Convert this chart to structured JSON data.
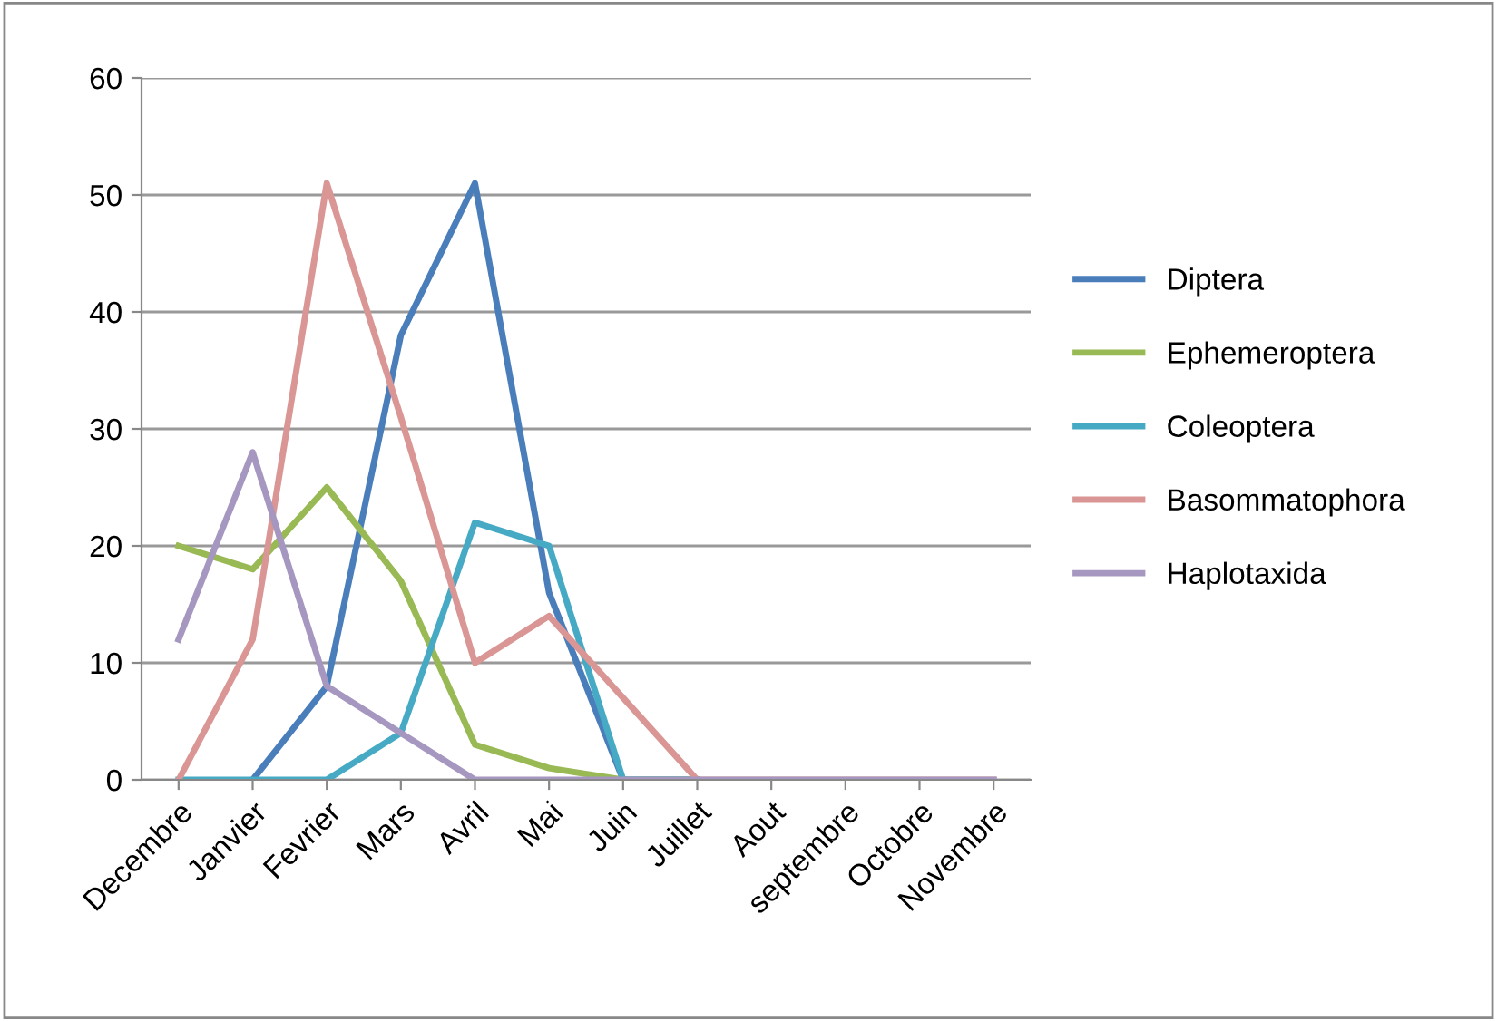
{
  "chart_data": {
    "type": "line",
    "categories": [
      "Decembre",
      "Janvier",
      "Fevrier",
      "Mars",
      "Avril",
      "Mai",
      "Juin",
      "Juillet",
      "Aout",
      "septembre",
      "Octobre",
      "Novembre"
    ],
    "series": [
      {
        "name": "Diptera",
        "color": "#4a7ebb",
        "values": [
          null,
          0,
          8,
          38,
          51,
          16,
          0,
          0,
          null,
          null,
          null,
          null
        ]
      },
      {
        "name": "Ephemeroptera",
        "color": "#98b954",
        "values": [
          20,
          18,
          25,
          17,
          3,
          1,
          0,
          0,
          null,
          null,
          null,
          null
        ]
      },
      {
        "name": "Coleoptera",
        "color": "#46aac5",
        "values": [
          0,
          0,
          0,
          4,
          22,
          20,
          0,
          0,
          null,
          null,
          null,
          null
        ]
      },
      {
        "name": "Basommatophora",
        "color": "#d99694",
        "values": [
          0,
          12,
          51,
          31,
          10,
          14,
          7,
          0,
          0,
          0,
          0,
          0
        ]
      },
      {
        "name": "Haplotaxida",
        "color": "#a597c0",
        "values": [
          12,
          28,
          8,
          4,
          0,
          0,
          0,
          0,
          0,
          0,
          0,
          0
        ]
      }
    ],
    "ylim": [
      0,
      60
    ],
    "yticks": [
      0,
      10,
      20,
      30,
      40,
      50,
      60
    ],
    "grid": "y",
    "legend": "right",
    "marker": "none",
    "line_style": "solid"
  }
}
